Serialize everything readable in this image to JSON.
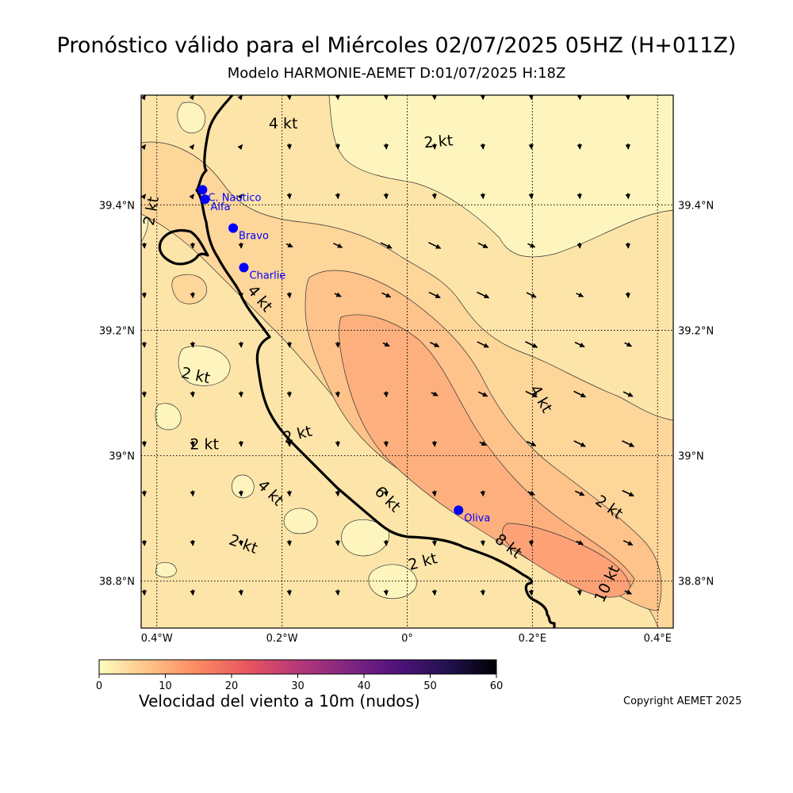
{
  "header": {
    "title": "Pronóstico válido para el Miércoles 02/07/2025 05HZ (H+011Z)",
    "subtitle": "Modelo HARMONIE-AEMET D:01/07/2025 H:18Z"
  },
  "map": {
    "lon_range": [
      -0.425,
      0.425
    ],
    "lat_range": [
      38.725,
      39.575
    ],
    "lon_ticks": [
      {
        "value": -0.4,
        "label": "0.4°W"
      },
      {
        "value": -0.2,
        "label": "0.2°W"
      },
      {
        "value": 0.0,
        "label": "0°"
      },
      {
        "value": 0.2,
        "label": "0.2°E"
      },
      {
        "value": 0.4,
        "label": "0.4°E"
      }
    ],
    "lat_ticks": [
      {
        "value": 39.4,
        "label": "39.4°N"
      },
      {
        "value": 39.2,
        "label": "39.2°N"
      },
      {
        "value": 39.0,
        "label": "39°N"
      },
      {
        "value": 38.8,
        "label": "38.8°N"
      }
    ],
    "grid": true,
    "coastline_color": "#000000",
    "stations": [
      {
        "name": "C. Nautico",
        "lon": -0.327,
        "lat": 39.424
      },
      {
        "name": "Alfa",
        "lon": -0.323,
        "lat": 39.409
      },
      {
        "name": "Bravo",
        "lon": -0.278,
        "lat": 39.363
      },
      {
        "name": "Charlie",
        "lon": -0.261,
        "lat": 39.3
      },
      {
        "name": "Oliva",
        "lon": 0.082,
        "lat": 38.913
      }
    ],
    "contour_labels": [
      {
        "text": "4 kt",
        "lon": -0.198,
        "lat": 39.529,
        "angle": 0
      },
      {
        "text": "2 kt",
        "lon": 0.05,
        "lat": 39.5,
        "angle": -5
      },
      {
        "text": "2 kt",
        "lon": -0.408,
        "lat": 39.39,
        "angle": -80
      },
      {
        "text": "4 kt",
        "lon": -0.236,
        "lat": 39.25,
        "angle": 50
      },
      {
        "text": "2 kt",
        "lon": -0.338,
        "lat": 39.127,
        "angle": 12
      },
      {
        "text": "2 kt",
        "lon": -0.324,
        "lat": 39.017,
        "angle": 0
      },
      {
        "text": "2 kt",
        "lon": -0.175,
        "lat": 39.033,
        "angle": -15
      },
      {
        "text": "4 kt",
        "lon": 0.213,
        "lat": 39.09,
        "angle": 60
      },
      {
        "text": "4 kt",
        "lon": -0.219,
        "lat": 38.94,
        "angle": 45
      },
      {
        "text": "6 kt",
        "lon": -0.032,
        "lat": 38.93,
        "angle": 45
      },
      {
        "text": "2 kt",
        "lon": 0.322,
        "lat": 38.917,
        "angle": 35
      },
      {
        "text": "2 kt",
        "lon": -0.262,
        "lat": 38.858,
        "angle": 20
      },
      {
        "text": "8 kt",
        "lon": 0.161,
        "lat": 38.855,
        "angle": 38
      },
      {
        "text": "2 kt",
        "lon": 0.025,
        "lat": 38.83,
        "angle": -15
      },
      {
        "text": "10 kt",
        "lon": 0.32,
        "lat": 38.795,
        "angle": -65
      }
    ]
  },
  "colorbar": {
    "min": 0,
    "max": 60,
    "ticks": [
      0,
      10,
      20,
      30,
      40,
      50,
      60
    ],
    "tick_labels": [
      "0",
      "10",
      "20",
      "30",
      "40",
      "50",
      "60"
    ],
    "colormap": "magma_r",
    "colors": [
      "#fcfdbf",
      "#fec287",
      "#fc8961",
      "#e7555f",
      "#b73779",
      "#822681",
      "#51127c",
      "#221150",
      "#000004"
    ],
    "label": "Velocidad del viento a 10m (nudos)"
  },
  "copyright": "Copyright AEMET 2025"
}
